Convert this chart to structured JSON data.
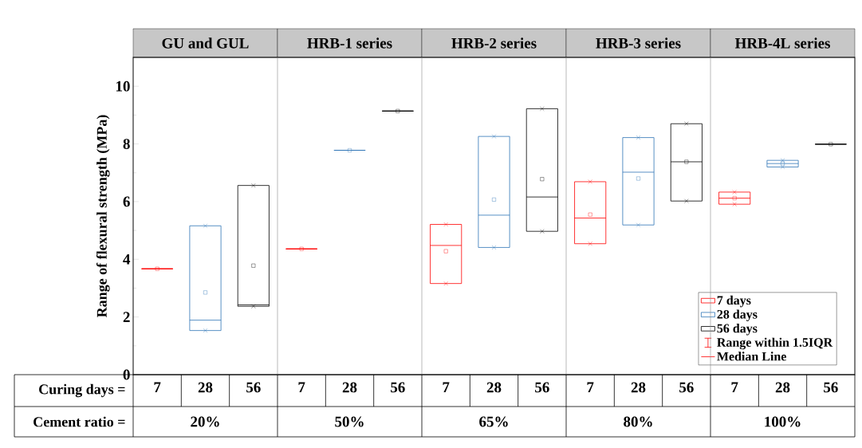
{
  "chart_data": {
    "type": "box",
    "ylabel": "Range of flexural strength (MPa)",
    "categories": [
      "7",
      "28",
      "56",
      "7",
      "28",
      "56",
      "7",
      "28",
      "56",
      "7",
      "28",
      "56",
      "7",
      "28",
      "56"
    ],
    "ylim": [
      0,
      11
    ],
    "yticks": [
      0,
      2,
      4,
      6,
      8,
      10
    ],
    "marker": "cross",
    "legend": "bottom right",
    "series": [
      {
        "name": "7 days",
        "color": "#ff0000",
        "boxes": [
          {
            "low": 3.67,
            "q1": 3.67,
            "median": 3.67,
            "q3": 3.67,
            "high": 3.67,
            "mean": 3.67
          },
          null,
          null,
          {
            "low": 4.36,
            "q1": 4.36,
            "median": 4.36,
            "q3": 4.36,
            "high": 4.36,
            "mean": 4.36
          },
          null,
          null,
          {
            "low": 3.16,
            "q1": 3.16,
            "median": 4.48,
            "q3": 5.21,
            "high": 5.21,
            "mean": 4.28,
            "outliers": [
              3.16,
              5.21
            ]
          },
          null,
          null,
          {
            "low": 4.54,
            "q1": 4.54,
            "median": 5.43,
            "q3": 6.69,
            "high": 6.69,
            "mean": 5.55,
            "outliers": [
              4.54,
              6.69
            ]
          },
          null,
          null,
          {
            "low": 5.91,
            "q1": 5.91,
            "median": 6.12,
            "q3": 6.33,
            "high": 6.33,
            "mean": 6.12,
            "outliers": [
              5.91,
              6.33
            ]
          },
          null,
          null
        ]
      },
      {
        "name": "28 days",
        "color": "#2e75b6",
        "boxes": [
          null,
          {
            "low": 1.53,
            "q1": 1.53,
            "median": 1.89,
            "q3": 5.16,
            "high": 5.16,
            "mean": 2.85,
            "outliers": [
              1.53,
              5.16
            ]
          },
          null,
          null,
          {
            "low": 7.78,
            "q1": 7.78,
            "median": 7.78,
            "q3": 7.78,
            "high": 7.78,
            "mean": 7.78
          },
          null,
          null,
          {
            "low": 4.41,
            "q1": 4.41,
            "median": 5.53,
            "q3": 8.26,
            "high": 8.26,
            "mean": 6.07,
            "outliers": [
              4.41,
              8.26
            ]
          },
          null,
          null,
          {
            "low": 5.19,
            "q1": 5.19,
            "median": 7.02,
            "q3": 8.22,
            "high": 8.22,
            "mean": 6.8,
            "outliers": [
              5.19,
              8.22
            ]
          },
          null,
          null,
          {
            "low": 7.2,
            "q1": 7.2,
            "median": 7.32,
            "q3": 7.43,
            "high": 7.43,
            "mean": 7.32,
            "outliers": [
              7.2,
              7.43
            ]
          },
          null
        ]
      },
      {
        "name": "56 days",
        "color": "#000000",
        "boxes": [
          null,
          null,
          {
            "low": 2.37,
            "q1": 2.37,
            "median": 2.42,
            "q3": 6.56,
            "high": 6.56,
            "mean": 3.78,
            "outliers": [
              2.37,
              6.56
            ]
          },
          null,
          null,
          {
            "low": 9.14,
            "q1": 9.14,
            "median": 9.14,
            "q3": 9.14,
            "high": 9.14,
            "mean": 9.14
          },
          null,
          null,
          {
            "low": 4.97,
            "q1": 4.97,
            "median": 6.16,
            "q3": 9.22,
            "high": 9.22,
            "mean": 6.78,
            "outliers": [
              4.97,
              9.22
            ]
          },
          null,
          null,
          {
            "low": 6.02,
            "q1": 6.02,
            "median": 7.38,
            "q3": 8.7,
            "high": 8.7,
            "mean": 7.38,
            "outliers": [
              6.02,
              8.7
            ]
          },
          null,
          null,
          {
            "low": 7.99,
            "q1": 7.99,
            "median": 7.99,
            "q3": 7.99,
            "high": 7.99,
            "mean": 7.99
          }
        ]
      }
    ],
    "annotations": [
      "GU and GUL",
      "HRB-1 series",
      "HRB-2 series",
      "HRB-3 series",
      "HRB-4L series",
      "Curing days =",
      "Cement ratio =",
      "20%",
      "50%",
      "65%",
      "80%",
      "100%",
      "Range within 1.5IQR",
      "Median Line"
    ]
  }
}
